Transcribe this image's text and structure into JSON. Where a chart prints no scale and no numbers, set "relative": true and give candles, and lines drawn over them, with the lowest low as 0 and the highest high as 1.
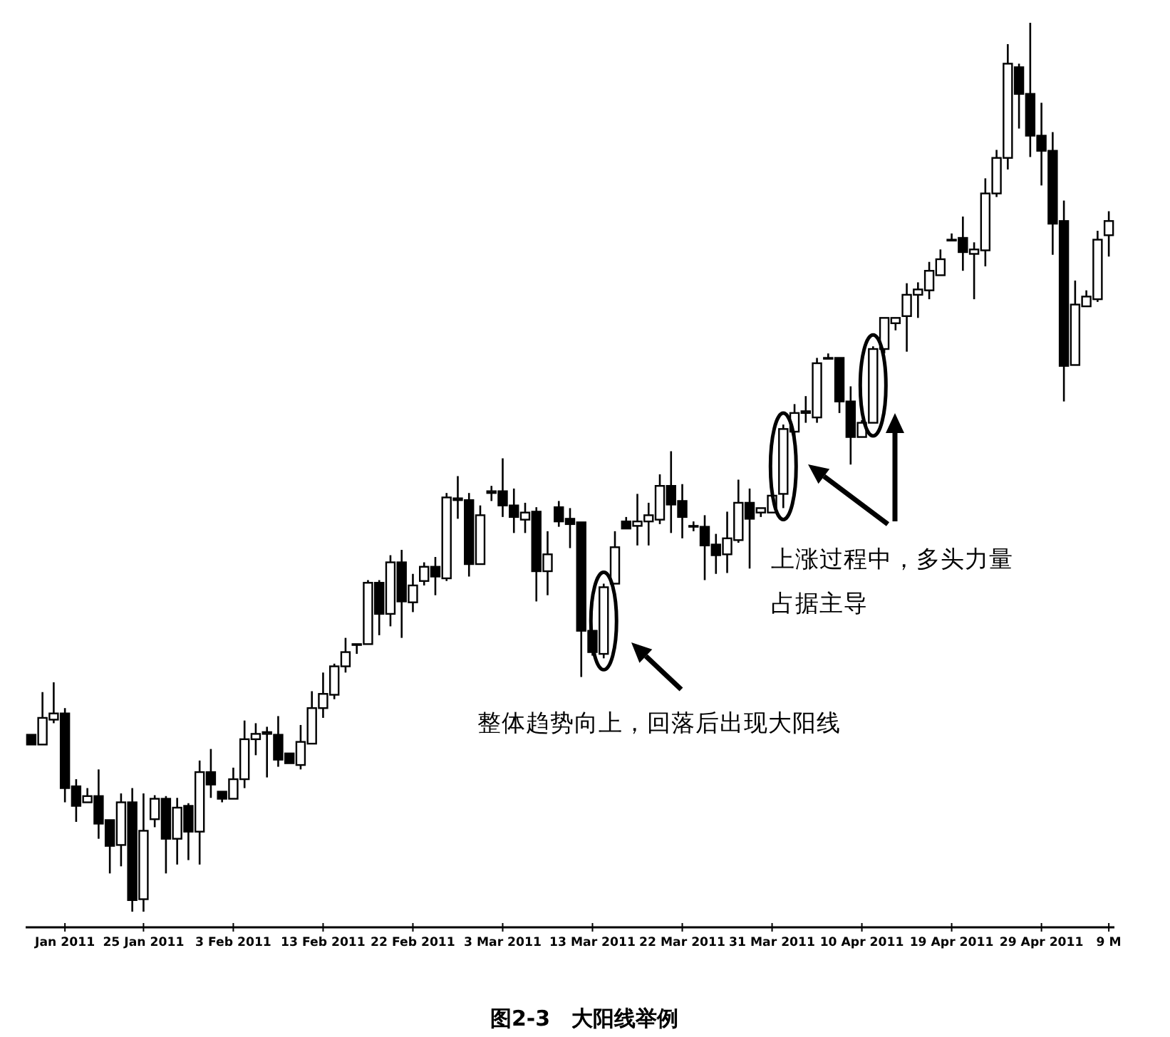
{
  "chart_data": {
    "type": "candlestick",
    "relative": true,
    "title": "图2-3　大阳线举例",
    "annotations": [
      "整体趋势向上，回落后出现大阳线",
      "上涨过程中，多头力量占据主导"
    ],
    "categories": [
      null,
      null,
      null,
      "Jan 2011",
      null,
      null,
      null,
      null,
      null,
      null,
      "25 Jan 2011",
      null,
      null,
      null,
      null,
      null,
      null,
      null,
      "3 Feb 2011",
      null,
      null,
      null,
      null,
      null,
      null,
      null,
      "13 Feb 2011",
      null,
      null,
      null,
      null,
      null,
      null,
      null,
      "22 Feb 2011",
      null,
      null,
      null,
      null,
      null,
      null,
      null,
      "3 Mar 2011",
      null,
      null,
      null,
      null,
      null,
      null,
      null,
      "13 Mar 2011",
      null,
      null,
      null,
      null,
      null,
      null,
      null,
      "22 Mar 2011",
      null,
      null,
      null,
      null,
      null,
      null,
      null,
      "31 Mar 2011",
      null,
      null,
      null,
      null,
      null,
      null,
      null,
      "10 Apr 2011",
      null,
      null,
      null,
      null,
      null,
      null,
      null,
      "19 Apr 2011",
      null,
      null,
      null,
      null,
      null,
      null,
      null,
      "29 Apr 2011",
      null,
      null,
      null,
      null,
      null,
      "9 M"
    ],
    "ohlc": [
      [
        0.199,
        0.199,
        0.188,
        0.188
      ],
      [
        0.188,
        0.247,
        0.188,
        0.218
      ],
      [
        0.216,
        0.258,
        0.212,
        0.223
      ],
      [
        0.223,
        0.229,
        0.123,
        0.139
      ],
      [
        0.141,
        0.149,
        0.101,
        0.119
      ],
      [
        0.123,
        0.139,
        0.122,
        0.13
      ],
      [
        0.13,
        0.16,
        0.082,
        0.099
      ],
      [
        0.103,
        0.104,
        0.043,
        0.074
      ],
      [
        0.075,
        0.133,
        0.051,
        0.123
      ],
      [
        0.123,
        0.139,
        0,
        0.013
      ],
      [
        0.014,
        0.133,
        0,
        0.091
      ],
      [
        0.104,
        0.131,
        0.095,
        0.127
      ],
      [
        0.127,
        0.13,
        0.043,
        0.082
      ],
      [
        0.082,
        0.128,
        0.053,
        0.117
      ],
      [
        0.119,
        0.122,
        0.058,
        0.09
      ],
      [
        0.09,
        0.17,
        0.053,
        0.157
      ],
      [
        0.157,
        0.183,
        0.128,
        0.143
      ],
      [
        0.135,
        0.136,
        0.123,
        0.127
      ],
      [
        0.127,
        0.162,
        0.127,
        0.149
      ],
      [
        0.149,
        0.215,
        0.139,
        0.194
      ],
      [
        0.194,
        0.212,
        0.176,
        0.2
      ],
      [
        0.2,
        0.208,
        0.151,
        0.202
      ],
      [
        0.199,
        0.22,
        0.163,
        0.171
      ],
      [
        0.178,
        0.178,
        0.167,
        0.167
      ],
      [
        0.165,
        0.21,
        0.16,
        0.191
      ],
      [
        0.189,
        0.248,
        0.188,
        0.229
      ],
      [
        0.229,
        0.269,
        0.218,
        0.245
      ],
      [
        0.244,
        0.279,
        0.239,
        0.276
      ],
      [
        0.276,
        0.308,
        0.269,
        0.292
      ],
      [
        0.3,
        0.303,
        0.29,
        0.301
      ],
      [
        0.301,
        0.373,
        0.301,
        0.37
      ],
      [
        0.37,
        0.373,
        0.311,
        0.335
      ],
      [
        0.335,
        0.401,
        0.321,
        0.393
      ],
      [
        0.393,
        0.407,
        0.308,
        0.349
      ],
      [
        0.348,
        0.38,
        0.337,
        0.367
      ],
      [
        0.372,
        0.393,
        0.367,
        0.388
      ],
      [
        0.388,
        0.399,
        0.356,
        0.377
      ],
      [
        0.375,
        0.471,
        0.372,
        0.466
      ],
      [
        0.463,
        0.49,
        0.442,
        0.465
      ],
      [
        0.463,
        0.471,
        0.377,
        0.391
      ],
      [
        0.391,
        0.457,
        0.389,
        0.446
      ],
      [
        0.471,
        0.479,
        0.462,
        0.473
      ],
      [
        0.473,
        0.51,
        0.444,
        0.457
      ],
      [
        0.457,
        0.476,
        0.426,
        0.444
      ],
      [
        0.441,
        0.46,
        0.426,
        0.449
      ],
      [
        0.45,
        0.455,
        0.349,
        0.383
      ],
      [
        0.383,
        0.428,
        0.356,
        0.402
      ],
      [
        0.455,
        0.462,
        0.433,
        0.439
      ],
      [
        0.442,
        0.454,
        0.409,
        0.436
      ],
      [
        0.438,
        0.439,
        0.264,
        0.316
      ],
      [
        0.316,
        0.316,
        0.288,
        0.292
      ],
      [
        0.29,
        0.369,
        0.285,
        0.365
      ],
      [
        0.369,
        0.428,
        0.369,
        0.41
      ],
      [
        0.439,
        0.444,
        0.429,
        0.431
      ],
      [
        0.434,
        0.47,
        0.412,
        0.439
      ],
      [
        0.439,
        0.46,
        0.412,
        0.446
      ],
      [
        0.441,
        0.492,
        0.436,
        0.479
      ],
      [
        0.479,
        0.518,
        0.426,
        0.458
      ],
      [
        0.462,
        0.481,
        0.42,
        0.444
      ],
      [
        0.434,
        0.439,
        0.428,
        0.433
      ],
      [
        0.433,
        0.446,
        0.373,
        0.412
      ],
      [
        0.413,
        0.425,
        0.38,
        0.401
      ],
      [
        0.402,
        0.45,
        0.381,
        0.42
      ],
      [
        0.418,
        0.486,
        0.415,
        0.46
      ],
      [
        0.46,
        0.476,
        0.386,
        0.442
      ],
      [
        0.449,
        0.454,
        0.444,
        0.454
      ],
      [
        0.449,
        0.471,
        0.447,
        0.468
      ],
      [
        0.47,
        0.548,
        0.454,
        0.543
      ],
      [
        0.54,
        0.571,
        0.534,
        0.561
      ],
      [
        0.561,
        0.58,
        0.55,
        0.563
      ],
      [
        0.556,
        0.623,
        0.55,
        0.617
      ],
      [
        0.623,
        0.628,
        0.62,
        0.622
      ],
      [
        0.623,
        0.625,
        0.561,
        0.574
      ],
      [
        0.574,
        0.591,
        0.503,
        0.534
      ],
      [
        0.534,
        0.553,
        0.534,
        0.55
      ],
      [
        0.55,
        0.636,
        0.548,
        0.633
      ],
      [
        0.633,
        0.67,
        0.628,
        0.668
      ],
      [
        0.662,
        0.67,
        0.654,
        0.668
      ],
      [
        0.67,
        0.707,
        0.63,
        0.694
      ],
      [
        0.694,
        0.708,
        0.668,
        0.7
      ],
      [
        0.699,
        0.731,
        0.689,
        0.721
      ],
      [
        0.716,
        0.745,
        0.715,
        0.734
      ],
      [
        0.755,
        0.763,
        0.755,
        0.756
      ],
      [
        0.758,
        0.782,
        0.721,
        0.742
      ],
      [
        0.74,
        0.753,
        0.689,
        0.745
      ],
      [
        0.744,
        0.825,
        0.726,
        0.808
      ],
      [
        0.808,
        0.857,
        0.804,
        0.848
      ],
      [
        0.848,
        0.976,
        0.835,
        0.954
      ],
      [
        0.95,
        0.954,
        0.881,
        0.92
      ],
      [
        0.92,
        1.0,
        0.849,
        0.873
      ],
      [
        0.873,
        0.91,
        0.817,
        0.856
      ],
      [
        0.856,
        0.877,
        0.739,
        0.774
      ],
      [
        0.777,
        0.8,
        0.574,
        0.614
      ],
      [
        0.615,
        0.71,
        0.614,
        0.683
      ],
      [
        0.681,
        0.699,
        0.679,
        0.692
      ],
      [
        0.689,
        0.766,
        0.686,
        0.756
      ],
      [
        0.761,
        0.788,
        0.737,
        0.777
      ]
    ]
  }
}
